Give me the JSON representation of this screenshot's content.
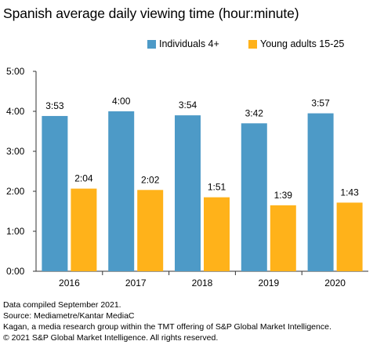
{
  "colors": {
    "individuals": "#4d9ac7",
    "young_adults": "#ffb21a",
    "axis": "#333333",
    "grid": "#bfbfbf"
  },
  "chart_data": {
    "type": "bar",
    "title": "Spanish average daily viewing time (hour:minute)",
    "categories": [
      "2016",
      "2017",
      "2018",
      "2019",
      "2020"
    ],
    "series": [
      {
        "name": "Individuals 4+",
        "values": [
          3.8833,
          4.0,
          3.9,
          3.7,
          3.95
        ],
        "labels": [
          "3:53",
          "4:00",
          "3:54",
          "3:42",
          "3:57"
        ]
      },
      {
        "name": "Young adults 15-25",
        "values": [
          2.0667,
          2.0333,
          1.85,
          1.65,
          1.7167
        ],
        "labels": [
          "2:04",
          "2:02",
          "1:51",
          "1:39",
          "1:43"
        ]
      }
    ],
    "ylim": [
      0,
      5
    ],
    "yticks": [
      0,
      1,
      2,
      3,
      4,
      5
    ],
    "ytick_labels": [
      "0:00",
      "1:00",
      "2:00",
      "3:00",
      "4:00",
      "5:00"
    ],
    "xlabel": "",
    "ylabel": "",
    "legend": "top",
    "grid": false
  },
  "footer": {
    "line1": "Data compiled September 2021.",
    "line2": "Source: Mediametre/Kantar MediaC",
    "line3": "Kagan, a media research group within the TMT offering of S&P Global Market Intelligence.",
    "line4": "© 2021 S&P Global Market Intelligence. All rights reserved."
  }
}
